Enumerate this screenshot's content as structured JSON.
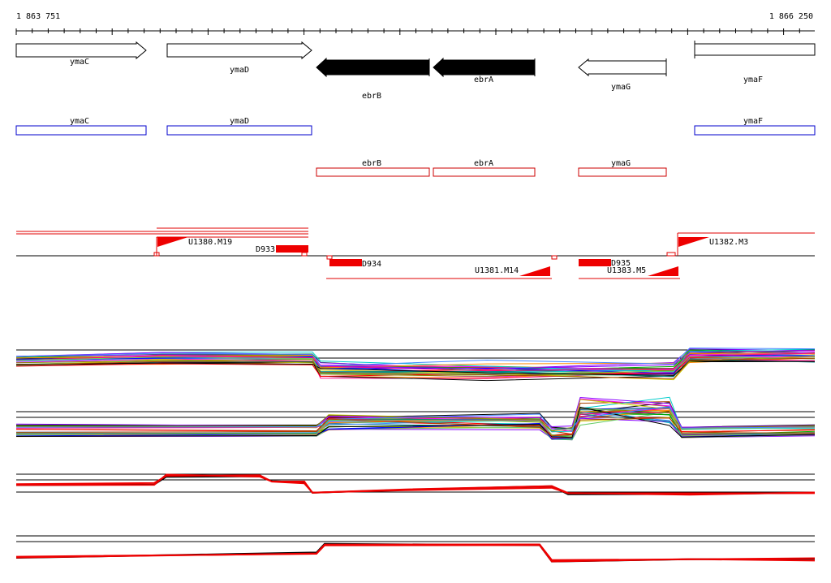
{
  "ruler": {
    "start": "1 863 751",
    "end": "1 866 250"
  },
  "genes": [
    {
      "label": "ymaC"
    },
    {
      "label": "ymaD"
    },
    {
      "label": "ebrB"
    },
    {
      "label": "ebrA"
    },
    {
      "label": "ymaG"
    },
    {
      "label": "ymaF"
    }
  ],
  "annotations_blue": [
    {
      "label": "ymaC"
    },
    {
      "label": "ymaD"
    },
    {
      "label": "ymaF"
    }
  ],
  "annotations_red": [
    {
      "label": "ebrB"
    },
    {
      "label": "ebrA"
    },
    {
      "label": "ymaG"
    }
  ],
  "transcripts": [
    {
      "label": "U1380.M19"
    },
    {
      "label": "D933"
    },
    {
      "label": "D934"
    },
    {
      "label": "U1381.M14"
    },
    {
      "label": "D935"
    },
    {
      "label": "U1383.M5"
    },
    {
      "label": "U1382.M3"
    }
  ]
}
